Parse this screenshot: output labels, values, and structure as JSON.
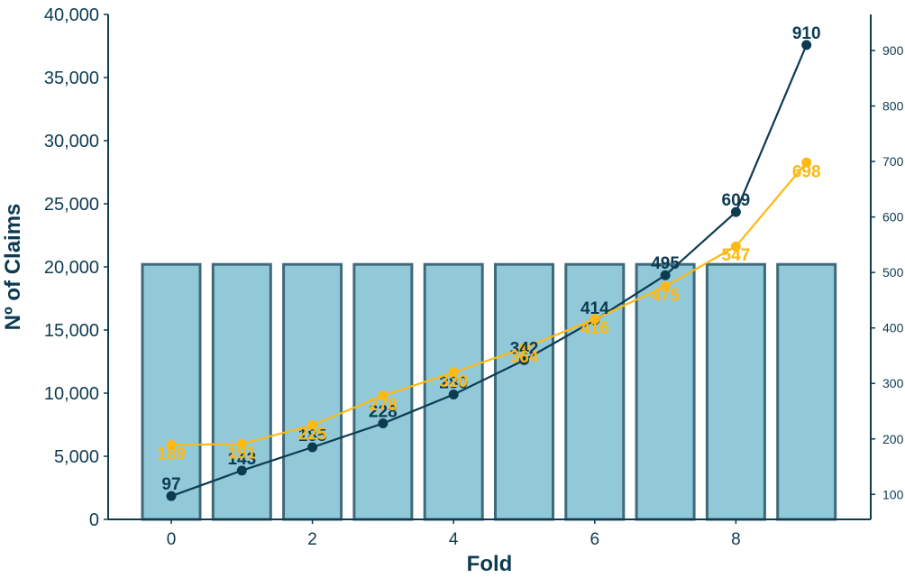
{
  "chart_data": {
    "type": "bar",
    "xlabel": "Fold",
    "ylabel": "Nº of Claims",
    "x_ticks": [
      "0",
      "2",
      "4",
      "6",
      "8"
    ],
    "y_ticks": [
      "0",
      "5,000",
      "10,000",
      "15,000",
      "20,000",
      "25,000",
      "30,000",
      "35,000",
      "40,000"
    ],
    "y2_ticks": [
      "100",
      "200",
      "300",
      "400",
      "500",
      "600",
      "700",
      "800",
      "900"
    ],
    "ylim": [
      0,
      40000
    ],
    "y2lim": [
      55,
      965
    ],
    "grid": false,
    "legend": "none",
    "categories": [
      0,
      1,
      2,
      3,
      4,
      5,
      6,
      7,
      8,
      9
    ],
    "series": [
      {
        "type": "bar",
        "axis": "left",
        "values": [
          20200,
          20200,
          20200,
          20200,
          20200,
          20200,
          20200,
          20200,
          20200,
          20200
        ],
        "color": "#92c9d9",
        "edge_color": "#3f6a7a"
      },
      {
        "type": "line",
        "axis": "right",
        "values": [
          97,
          143,
          185,
          228,
          280,
          342,
          414,
          495,
          609,
          910
        ],
        "labels": [
          "97",
          "143",
          "185",
          "228",
          "280",
          "342",
          "414",
          "495",
          "609",
          "910"
        ],
        "color": "#0d3b52"
      },
      {
        "type": "line",
        "axis": "right",
        "values": [
          189,
          191,
          225,
          278,
          320,
          364,
          416,
          475,
          547,
          698
        ],
        "labels": [
          "189",
          "191",
          "225",
          "278",
          "320",
          "364",
          "416",
          "475",
          "547",
          "698"
        ],
        "color": "#fdb913"
      }
    ]
  }
}
